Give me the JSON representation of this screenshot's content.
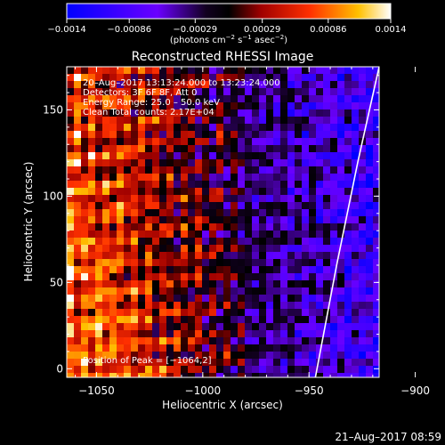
{
  "chart_data": {
    "type": "heatmap",
    "title": "Reconstructed RHESSI Image",
    "xlabel": "Heliocentric X (arcsec)",
    "ylabel": "Heliocentric Y (arcsec)",
    "xlim": [
      -1064,
      -917
    ],
    "ylim": [
      -5,
      175
    ],
    "x_ticks": [
      -1050,
      -1000,
      -950,
      -900
    ],
    "x_tick_labels": [
      "−1050",
      "−1000",
      "−950",
      "−900"
    ],
    "y_ticks": [
      0,
      50,
      100,
      150
    ],
    "y_tick_labels": [
      "0",
      "50",
      "100",
      "150"
    ],
    "colorbar": {
      "min": -0.0014,
      "max": 0.0014,
      "ticks": [
        -0.0014,
        -0.00086,
        -0.00029,
        0.00029,
        0.00086,
        0.0014
      ],
      "tick_labels": [
        "−0.0014",
        "−0.00086",
        "−0.00029",
        "0.00029",
        "0.00086",
        "0.0014"
      ],
      "unit_text": "(photons cm",
      "unit_sup1": "−2",
      "unit_mid": " s",
      "unit_sup2": "−1",
      "unit_mid2": " asec",
      "unit_sup3": "−2",
      "unit_end": ")"
    },
    "annotations": [
      "20–Aug–2017 13:13:24.000 to 13:23:24.000",
      "Detectors: 3F 6F 8F, Att 0",
      "Energy Range: 25.0 – 50.0 keV",
      "Clean    Total counts: 2.17E+04"
    ],
    "peak_label": "Position of Peak = [−1064,2]",
    "limb_line": [
      [
        -947,
        -5
      ],
      [
        -937,
        60
      ],
      [
        -927,
        120
      ],
      [
        -917,
        175
      ]
    ],
    "grid": false
  },
  "footer_timestamp": "21–Aug–2017 08:59"
}
